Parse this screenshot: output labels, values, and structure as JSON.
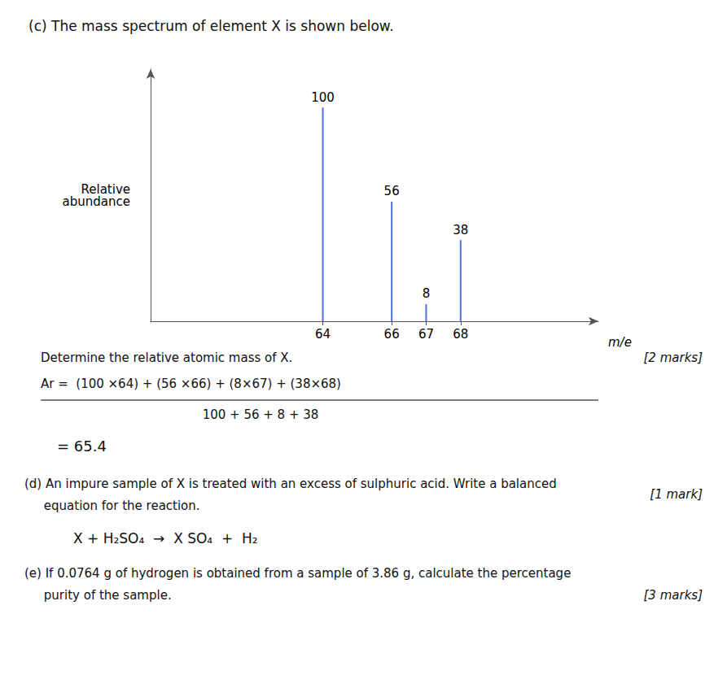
{
  "chart_data": {
    "type": "bar",
    "title": "(c) The mass spectrum of element X is shown below.",
    "xlabel": "m/e",
    "ylabel": "Relative\nabundance",
    "x": [
      64,
      66,
      67,
      68
    ],
    "values": [
      100,
      56,
      8,
      38
    ],
    "data_labels": true,
    "xlim": [
      59,
      72
    ],
    "ylim": [
      0,
      118
    ],
    "xticks": [
      64,
      66,
      67,
      68
    ],
    "tick_labels": "x",
    "grid": false,
    "annotations": [
      "Determine the relative atomic mass of X.",
      "[2 marks]",
      "Ar =  (100 ×64) + (56 ×66) + (8×67) + (38×68)",
      "100 + 56 + 8 + 38",
      "= 65.4",
      "(d) An impure sample of X is treated with an excess of sulphuric acid. Write a balanced",
      "     equation for the reaction.",
      "[1 mark]",
      "X + H₂SO₄  →  X SO₄  +  H₂",
      "(e) If 0.0764 g of hydrogen is obtained from a sample of 3.86 g, calculate the percentage",
      "     purity of the sample.",
      "[3 marks]"
    ]
  }
}
